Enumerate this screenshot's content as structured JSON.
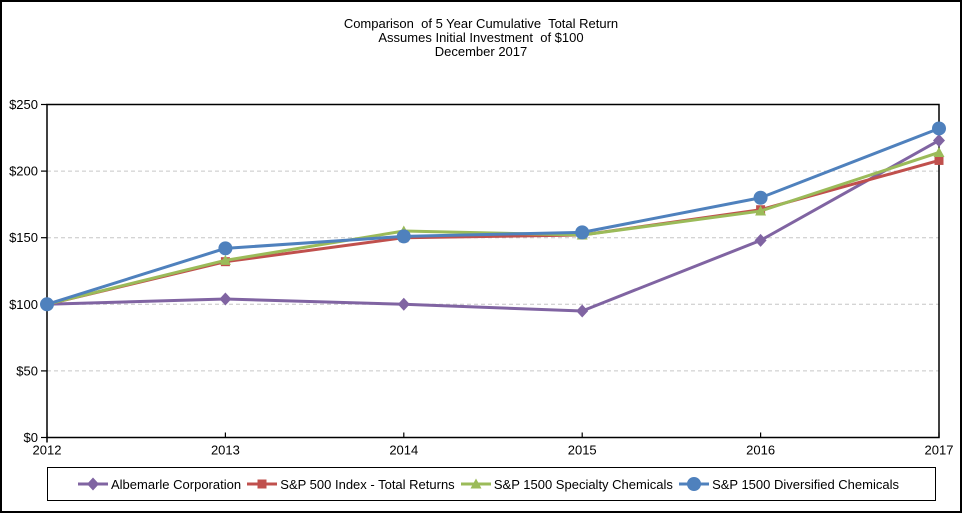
{
  "chart_data": {
    "type": "line",
    "title_lines": [
      "Comparison  of 5 Year Cumulative  Total Return",
      "Assumes Initial Investment  of $100",
      "December 2017"
    ],
    "categories": [
      "2012",
      "2013",
      "2014",
      "2015",
      "2016",
      "2017"
    ],
    "series": [
      {
        "name": "Albemarle Corporation",
        "color": "#8064A2",
        "marker": "diamond",
        "values": [
          100,
          104,
          100,
          95,
          148,
          223
        ]
      },
      {
        "name": "S&P 500 Index - Total Returns",
        "color": "#C0504D",
        "marker": "square",
        "values": [
          100,
          132,
          150,
          152,
          171,
          208
        ]
      },
      {
        "name": "S&P 1500 Specialty Chemicals",
        "color": "#9BBB59",
        "marker": "triangle",
        "values": [
          100,
          133,
          155,
          152,
          170,
          214
        ]
      },
      {
        "name": "S&P 1500 Diversified Chemicals",
        "color": "#4F81BD",
        "marker": "circle",
        "values": [
          100,
          142,
          151,
          154,
          180,
          232
        ]
      }
    ],
    "xlabel": "",
    "ylabel": "",
    "ylim": [
      0,
      250
    ],
    "yticks": [
      {
        "value": 0,
        "label": "$0"
      },
      {
        "value": 50,
        "label": "$50"
      },
      {
        "value": 100,
        "label": "$100"
      },
      {
        "value": 150,
        "label": "$150"
      },
      {
        "value": 200,
        "label": "$200"
      },
      {
        "value": 250,
        "label": "$250"
      }
    ],
    "grid": "horizontal dashed gridlines every $50",
    "legend_position": "bottom",
    "axis_color": "#000000",
    "gridline_color": "#C6C6C6"
  }
}
